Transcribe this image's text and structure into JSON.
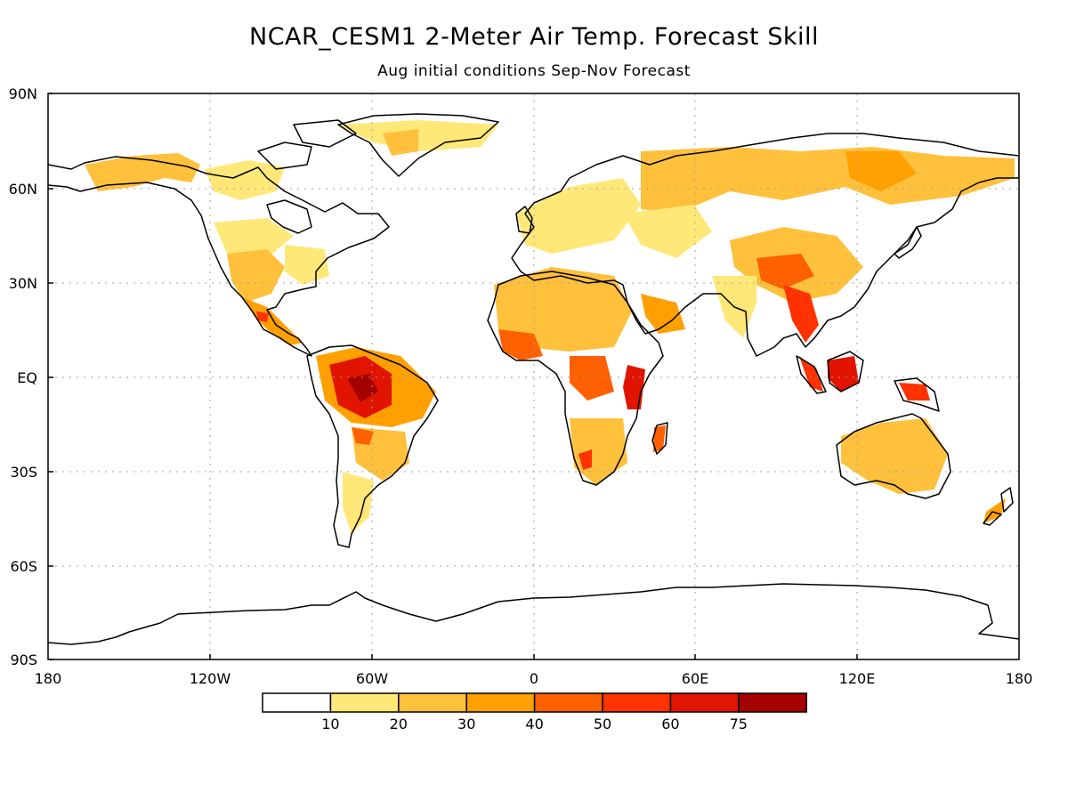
{
  "title": "NCAR_CESM1 2-Meter Air Temp. Forecast Skill",
  "subtitle": "Aug initial conditions   Sep-Nov Forecast",
  "lat_labels": [
    "90N",
    "60N",
    "30N",
    "EQ",
    "30S",
    "60S",
    "90S"
  ],
  "lon_labels": [
    "180",
    "120W",
    "60W",
    "0",
    "60E",
    "120E",
    "180"
  ],
  "colorbar": {
    "labels": [
      "10",
      "20",
      "30",
      "40",
      "50",
      "60",
      "75"
    ],
    "colors": [
      "#ffffff",
      "#ffe878",
      "#ffc03c",
      "#ffa000",
      "#ff6000",
      "#ff3200",
      "#e11400",
      "#a50000"
    ]
  },
  "colors": {
    "coastline": "#000000",
    "grid": "#a0a0a0"
  }
}
